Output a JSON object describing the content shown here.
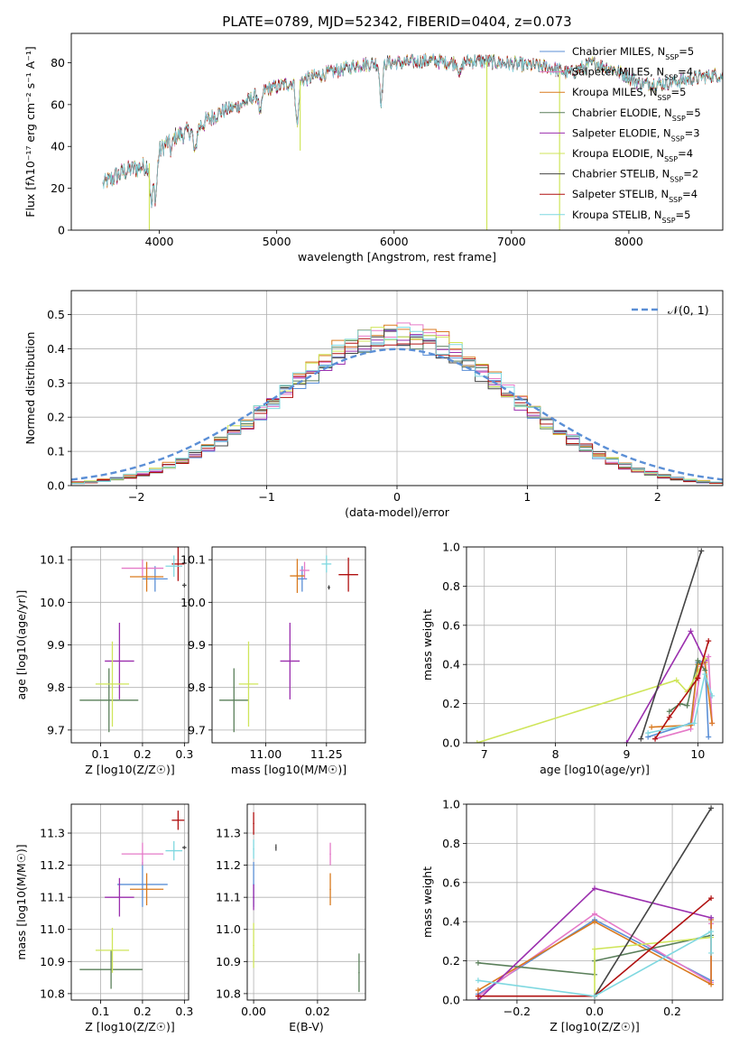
{
  "title": "PLATE=0789, MJD=52342, FIBERID=0404, z=0.073",
  "colors": {
    "Chabrier MILES": "#5b8fd6",
    "Salpeter MILES": "#e57ac8",
    "Kroupa MILES": "#d97a1f",
    "Chabrier ELODIE": "#5a7f5a",
    "Salpeter ELODIE": "#9b2fae",
    "Kroupa ELODIE": "#cfe55a",
    "Chabrier STELIB": "#444444",
    "Salpeter STELIB": "#b01010",
    "Kroupa STELIB": "#7fd8e0",
    "gauss": "#5b8fd6"
  },
  "chart_data": [
    {
      "type": "line",
      "id": "spectrum",
      "xlabel": "wavelength [Angstrom, rest frame]",
      "ylabel": "Flux [fλ10⁻¹⁷ erg cm⁻² s⁻¹ A⁻¹]",
      "xlim": [
        3250,
        8800
      ],
      "ylim": [
        0,
        94
      ],
      "xticks": [
        4000,
        5000,
        6000,
        7000,
        8000
      ],
      "yticks": [
        0,
        20,
        40,
        60,
        80
      ],
      "legend": [
        "Chabrier MILES, N_SSP=5",
        "Salpeter MILES, N_SSP=4",
        "Kroupa MILES, N_SSP=5",
        "Chabrier ELODIE, N_SSP=5",
        "Salpeter ELODIE, N_SSP=3",
        "Kroupa ELODIE, N_SSP=4",
        "Chabrier STELIB, N_SSP=2",
        "Salpeter STELIB, N_SSP=4",
        "Kroupa STELIB, N_SSP=5"
      ],
      "legend_placement": "upper-right",
      "continuum": {
        "x": [
          3520,
          3700,
          3900,
          4100,
          4300,
          4500,
          4700,
          4900,
          5100,
          5300,
          5500,
          5700,
          5900,
          6100,
          6300,
          6500,
          6700,
          6900,
          7100,
          7300,
          7500,
          7700,
          7900,
          8100,
          8300,
          8500,
          8700
        ],
        "y": [
          22,
          28,
          31,
          44,
          48,
          56,
          60,
          67,
          70,
          73,
          76,
          79,
          80,
          80,
          81,
          80,
          81,
          80,
          79,
          78,
          75,
          80,
          76,
          70,
          70,
          72,
          74
        ]
      },
      "dips": [
        {
          "x": 3934,
          "y": 12
        },
        {
          "x": 3969,
          "y": 16
        },
        {
          "x": 4102,
          "y": 38
        },
        {
          "x": 4304,
          "y": 36
        },
        {
          "x": 4861,
          "y": 55
        },
        {
          "x": 5175,
          "y": 50
        },
        {
          "x": 5890,
          "y": 62
        },
        {
          "x": 6563,
          "y": 74
        }
      ],
      "spikes": [
        {
          "x": 5200,
          "y": 38
        },
        {
          "x": 3915,
          "y": 0
        },
        {
          "x": 6790,
          "y": 0
        },
        {
          "x": 7410,
          "y": 0
        }
      ]
    },
    {
      "type": "histogram",
      "id": "residuals",
      "xlabel": "(data-model)/error",
      "ylabel": "Normed distribution",
      "xlim": [
        -2.5,
        2.5
      ],
      "ylim": [
        0,
        0.57
      ],
      "xticks": [
        -2,
        -1,
        0,
        1,
        2
      ],
      "yticks": [
        0.0,
        0.1,
        0.2,
        0.3,
        0.4,
        0.5
      ],
      "gaussian_label": "𝒩(0, 1)",
      "bin_width": 0.1
    },
    {
      "type": "scatter",
      "id": "age_vs_Z",
      "xlabel": "Z [log10(Z/Z☉)]",
      "ylabel": "age  [log10(age/yr)]",
      "xlim": [
        0.03,
        0.31
      ],
      "ylim": [
        9.67,
        10.13
      ],
      "xticks": [
        0.1,
        0.2,
        0.3
      ],
      "yticks": [
        9.7,
        9.8,
        9.9,
        10.0,
        10.1
      ],
      "points": [
        {
          "model": "Chabrier MILES",
          "x": 0.23,
          "y": 10.055,
          "xerr": 0.03,
          "yerr": 0.03
        },
        {
          "model": "Salpeter MILES",
          "x": 0.2,
          "y": 10.08,
          "xerr": 0.05,
          "yerr": 0.02
        },
        {
          "model": "Kroupa MILES",
          "x": 0.21,
          "y": 10.06,
          "xerr": 0.04,
          "yerr": 0.035
        },
        {
          "model": "Chabrier ELODIE",
          "x": 0.12,
          "y": 9.77,
          "xerr": 0.07,
          "yerr": 0.075
        },
        {
          "model": "Salpeter ELODIE",
          "x": 0.145,
          "y": 9.862,
          "xerr": 0.035,
          "yerr": 0.09
        },
        {
          "model": "Kroupa ELODIE",
          "x": 0.128,
          "y": 9.808,
          "xerr": 0.04,
          "yerr": 0.1
        },
        {
          "model": "Chabrier STELIB",
          "x": 0.3,
          "y": 10.04,
          "xerr": 0.005,
          "yerr": 0.005
        },
        {
          "model": "Salpeter STELIB",
          "x": 0.285,
          "y": 10.09,
          "xerr": 0.015,
          "yerr": 0.04
        },
        {
          "model": "Kroupa STELIB",
          "x": 0.275,
          "y": 10.085,
          "xerr": 0.02,
          "yerr": 0.025
        }
      ]
    },
    {
      "type": "scatter",
      "id": "age_vs_mass",
      "xlabel": "mass [log10(M/M☉)]",
      "ylabel": "",
      "xlim": [
        10.78,
        11.41
      ],
      "ylim": [
        9.67,
        10.13
      ],
      "xticks": [
        11.0,
        11.25
      ],
      "yticks": [
        9.7,
        9.8,
        9.9,
        10.0,
        10.1
      ],
      "points": [
        {
          "model": "Chabrier MILES",
          "x": 11.15,
          "y": 10.055,
          "xerr": 0.02,
          "yerr": 0.03
        },
        {
          "model": "Salpeter MILES",
          "x": 11.16,
          "y": 10.075,
          "xerr": 0.02,
          "yerr": 0.02
        },
        {
          "model": "Kroupa MILES",
          "x": 11.13,
          "y": 10.062,
          "xerr": 0.03,
          "yerr": 0.04
        },
        {
          "model": "Chabrier ELODIE",
          "x": 10.87,
          "y": 9.77,
          "xerr": 0.06,
          "yerr": 0.075
        },
        {
          "model": "Salpeter ELODIE",
          "x": 11.1,
          "y": 9.862,
          "xerr": 0.04,
          "yerr": 0.09
        },
        {
          "model": "Kroupa ELODIE",
          "x": 10.93,
          "y": 9.808,
          "xerr": 0.04,
          "yerr": 0.1
        },
        {
          "model": "Chabrier STELIB",
          "x": 11.26,
          "y": 10.035,
          "xerr": 0.005,
          "yerr": 0.005
        },
        {
          "model": "Salpeter STELIB",
          "x": 11.34,
          "y": 10.065,
          "xerr": 0.04,
          "yerr": 0.04
        },
        {
          "model": "Kroupa STELIB",
          "x": 11.25,
          "y": 10.09,
          "xerr": 0.02,
          "yerr": 0.02
        }
      ]
    },
    {
      "type": "line",
      "id": "massweight_vs_age",
      "xlabel": "age  [log10(age/yr)]",
      "ylabel": "mass weight",
      "xlim": [
        6.75,
        10.35
      ],
      "ylim": [
        0,
        1.0
      ],
      "xticks": [
        7,
        8,
        9,
        10
      ],
      "yticks": [
        0.0,
        0.2,
        0.4,
        0.6,
        0.8,
        1.0
      ],
      "series": [
        {
          "model": "Chabrier MILES",
          "x": [
            9.3,
            9.9,
            10.0,
            10.1,
            10.15
          ],
          "y": [
            0.03,
            0.1,
            0.41,
            0.42,
            0.03
          ]
        },
        {
          "model": "Salpeter MILES",
          "x": [
            9.4,
            9.9,
            10.05,
            10.15,
            10.2
          ],
          "y": [
            0.02,
            0.07,
            0.39,
            0.44,
            0.1
          ]
        },
        {
          "model": "Kroupa MILES",
          "x": [
            9.35,
            9.9,
            10.0,
            10.1,
            10.2
          ],
          "y": [
            0.08,
            0.09,
            0.4,
            0.41,
            0.1
          ]
        },
        {
          "model": "Chabrier ELODIE",
          "x": [
            9.6,
            9.75,
            9.85,
            10.0,
            10.1
          ],
          "y": [
            0.16,
            0.2,
            0.19,
            0.42,
            0.37
          ]
        },
        {
          "model": "Salpeter ELODIE",
          "x": [
            9.0,
            9.9,
            10.1
          ],
          "y": [
            0.0,
            0.57,
            0.42
          ]
        },
        {
          "model": "Kroupa ELODIE",
          "x": [
            6.9,
            9.7,
            9.85,
            10.1
          ],
          "y": [
            0.0,
            0.32,
            0.26,
            0.43
          ]
        },
        {
          "model": "Chabrier STELIB",
          "x": [
            9.2,
            10.05
          ],
          "y": [
            0.02,
            0.98
          ]
        },
        {
          "model": "Salpeter STELIB",
          "x": [
            9.4,
            9.6,
            10.0,
            10.15
          ],
          "y": [
            0.02,
            0.13,
            0.33,
            0.52
          ]
        },
        {
          "model": "Kroupa STELIB",
          "x": [
            9.3,
            9.95,
            10.1,
            10.2
          ],
          "y": [
            0.05,
            0.1,
            0.35,
            0.24
          ]
        }
      ]
    },
    {
      "type": "scatter",
      "id": "mass_vs_Z",
      "xlabel": "Z [log10(Z/Z☉)]",
      "ylabel": "mass [log10(M/M☉)]",
      "xlim": [
        0.03,
        0.31
      ],
      "ylim": [
        10.78,
        11.39
      ],
      "xticks": [
        0.1,
        0.2,
        0.3
      ],
      "yticks": [
        10.8,
        10.9,
        11.0,
        11.1,
        11.2,
        11.3
      ],
      "points": [
        {
          "model": "Chabrier MILES",
          "x": 0.2,
          "y": 11.14,
          "xerr": 0.06,
          "yerr": 0.07
        },
        {
          "model": "Salpeter MILES",
          "x": 0.2,
          "y": 11.235,
          "xerr": 0.05,
          "yerr": 0.035
        },
        {
          "model": "Kroupa MILES",
          "x": 0.21,
          "y": 11.125,
          "xerr": 0.04,
          "yerr": 0.05
        },
        {
          "model": "Chabrier ELODIE",
          "x": 0.125,
          "y": 10.875,
          "xerr": 0.075,
          "yerr": 0.06
        },
        {
          "model": "Salpeter ELODIE",
          "x": 0.145,
          "y": 11.1,
          "xerr": 0.035,
          "yerr": 0.06
        },
        {
          "model": "Kroupa ELODIE",
          "x": 0.128,
          "y": 10.935,
          "xerr": 0.04,
          "yerr": 0.07
        },
        {
          "model": "Chabrier STELIB",
          "x": 0.3,
          "y": 11.255,
          "xerr": 0.005,
          "yerr": 0.005
        },
        {
          "model": "Salpeter STELIB",
          "x": 0.285,
          "y": 11.34,
          "xerr": 0.015,
          "yerr": 0.03
        },
        {
          "model": "Kroupa STELIB",
          "x": 0.275,
          "y": 11.245,
          "xerr": 0.02,
          "yerr": 0.03
        }
      ]
    },
    {
      "type": "scatter",
      "id": "mass_vs_ebv",
      "xlabel": "E(B-V)",
      "ylabel": "",
      "xlim": [
        -0.002,
        0.035
      ],
      "ylim": [
        10.78,
        11.39
      ],
      "xticks": [
        0.0,
        0.02
      ],
      "yticks": [
        10.8,
        10.9,
        11.0,
        11.1,
        11.2,
        11.3
      ],
      "points": [
        {
          "model": "Chabrier MILES",
          "x": 0.0,
          "y": 11.14,
          "xerr": 0,
          "yerr": 0.07
        },
        {
          "model": "Salpeter MILES",
          "x": 0.024,
          "y": 11.235,
          "xerr": 0,
          "yerr": 0.035
        },
        {
          "model": "Kroupa MILES",
          "x": 0.024,
          "y": 11.125,
          "xerr": 0,
          "yerr": 0.05
        },
        {
          "model": "Chabrier ELODIE",
          "x": 0.033,
          "y": 10.865,
          "xerr": 0,
          "yerr": 0.06
        },
        {
          "model": "Salpeter ELODIE",
          "x": 0.0,
          "y": 11.1,
          "xerr": 0,
          "yerr": 0.04
        },
        {
          "model": "Kroupa ELODIE",
          "x": 0.0,
          "y": 10.95,
          "xerr": 0,
          "yerr": 0.07
        },
        {
          "model": "Chabrier STELIB",
          "x": 0.007,
          "y": 11.255,
          "xerr": 0,
          "yerr": 0.01
        },
        {
          "model": "Salpeter STELIB",
          "x": 0.0,
          "y": 11.33,
          "xerr": 0,
          "yerr": 0.035
        },
        {
          "model": "Kroupa STELIB",
          "x": 0.0,
          "y": 11.25,
          "xerr": 0,
          "yerr": 0.03
        }
      ]
    },
    {
      "type": "line",
      "id": "massweight_vs_Z",
      "xlabel": "Z [log10(Z/Z☉)]",
      "ylabel": "mass weight",
      "xlim": [
        -0.33,
        0.33
      ],
      "ylim": [
        0,
        1.0
      ],
      "xticks": [
        -0.2,
        0.0,
        0.2
      ],
      "yticks": [
        0.0,
        0.2,
        0.4,
        0.6,
        0.8,
        1.0
      ],
      "series": [
        {
          "model": "Chabrier MILES",
          "x": [
            -0.3,
            0.0,
            0.3,
            0.3
          ],
          "y": [
            0.03,
            0.41,
            0.1,
            0.42
          ]
        },
        {
          "model": "Salpeter MILES",
          "x": [
            -0.3,
            0.0,
            0.3,
            0.3
          ],
          "y": [
            0.02,
            0.44,
            0.09,
            0.39
          ]
        },
        {
          "model": "Kroupa MILES",
          "x": [
            -0.3,
            0.0,
            0.3,
            0.3
          ],
          "y": [
            0.05,
            0.4,
            0.08,
            0.41
          ]
        },
        {
          "model": "Chabrier ELODIE",
          "x": [
            -0.3,
            0.0,
            0.0,
            0.3
          ],
          "y": [
            0.19,
            0.13,
            0.2,
            0.33
          ]
        },
        {
          "model": "Salpeter ELODIE",
          "x": [
            -0.3,
            0.0,
            0.3
          ],
          "y": [
            0.0,
            0.57,
            0.42
          ]
        },
        {
          "model": "Kroupa ELODIE",
          "x": [
            0.0,
            0.0,
            0.3
          ],
          "y": [
            0.02,
            0.26,
            0.32
          ]
        },
        {
          "model": "Chabrier STELIB",
          "x": [
            0.0,
            0.3
          ],
          "y": [
            0.02,
            0.98
          ]
        },
        {
          "model": "Salpeter STELIB",
          "x": [
            -0.3,
            0.0,
            0.3
          ],
          "y": [
            0.02,
            0.02,
            0.52
          ]
        },
        {
          "model": "Kroupa STELIB",
          "x": [
            -0.3,
            0.0,
            0.3,
            0.3
          ],
          "y": [
            0.1,
            0.02,
            0.35,
            0.24
          ]
        }
      ]
    }
  ]
}
